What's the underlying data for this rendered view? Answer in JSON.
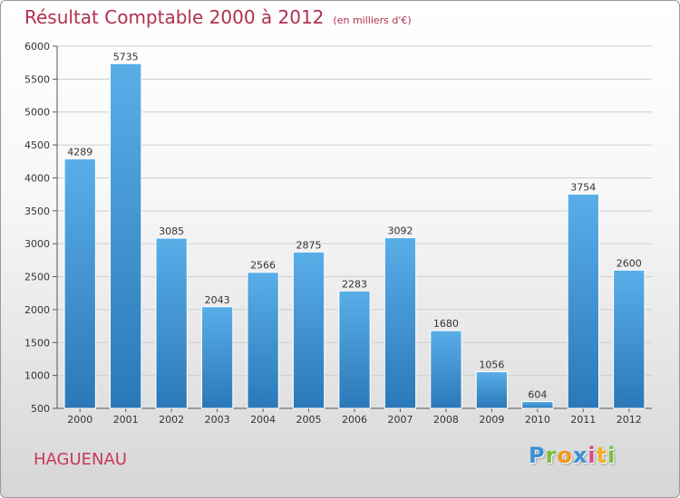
{
  "title": {
    "main": "Résultat Comptable 2000 à 2012",
    "sub": "(en milliers d'€)"
  },
  "city": "HAGUENAU",
  "logo": {
    "letters": [
      {
        "ch": "P",
        "color": "#3a8fd6"
      },
      {
        "ch": "r",
        "color": "#7bbf3a"
      },
      {
        "ch": "o",
        "color": "#f29a1f"
      },
      {
        "ch": "x",
        "color": "#3a8fd6"
      },
      {
        "ch": "i",
        "color": "#d94a8c"
      },
      {
        "ch": "t",
        "color": "#f2b01f"
      },
      {
        "ch": "i",
        "color": "#7bbf3a"
      }
    ]
  },
  "colors": {
    "bar_light": "#5aaee8",
    "bar_dark": "#2a78b8",
    "grid": "#cfcfcf"
  },
  "chart_data": {
    "type": "bar",
    "title": "Résultat Comptable 2000 à 2012",
    "categories": [
      "2000",
      "2001",
      "2002",
      "2003",
      "2004",
      "2005",
      "2006",
      "2007",
      "2008",
      "2009",
      "2010",
      "2011",
      "2012"
    ],
    "values": [
      4289,
      5735,
      3085,
      2043,
      2566,
      2875,
      2283,
      3092,
      1680,
      1056,
      604,
      3754,
      2600
    ],
    "ylim": [
      500,
      6000
    ],
    "yticks": [
      500,
      1000,
      1500,
      2000,
      2500,
      3000,
      3500,
      4000,
      4500,
      5000,
      5500,
      6000
    ],
    "grid": true
  }
}
